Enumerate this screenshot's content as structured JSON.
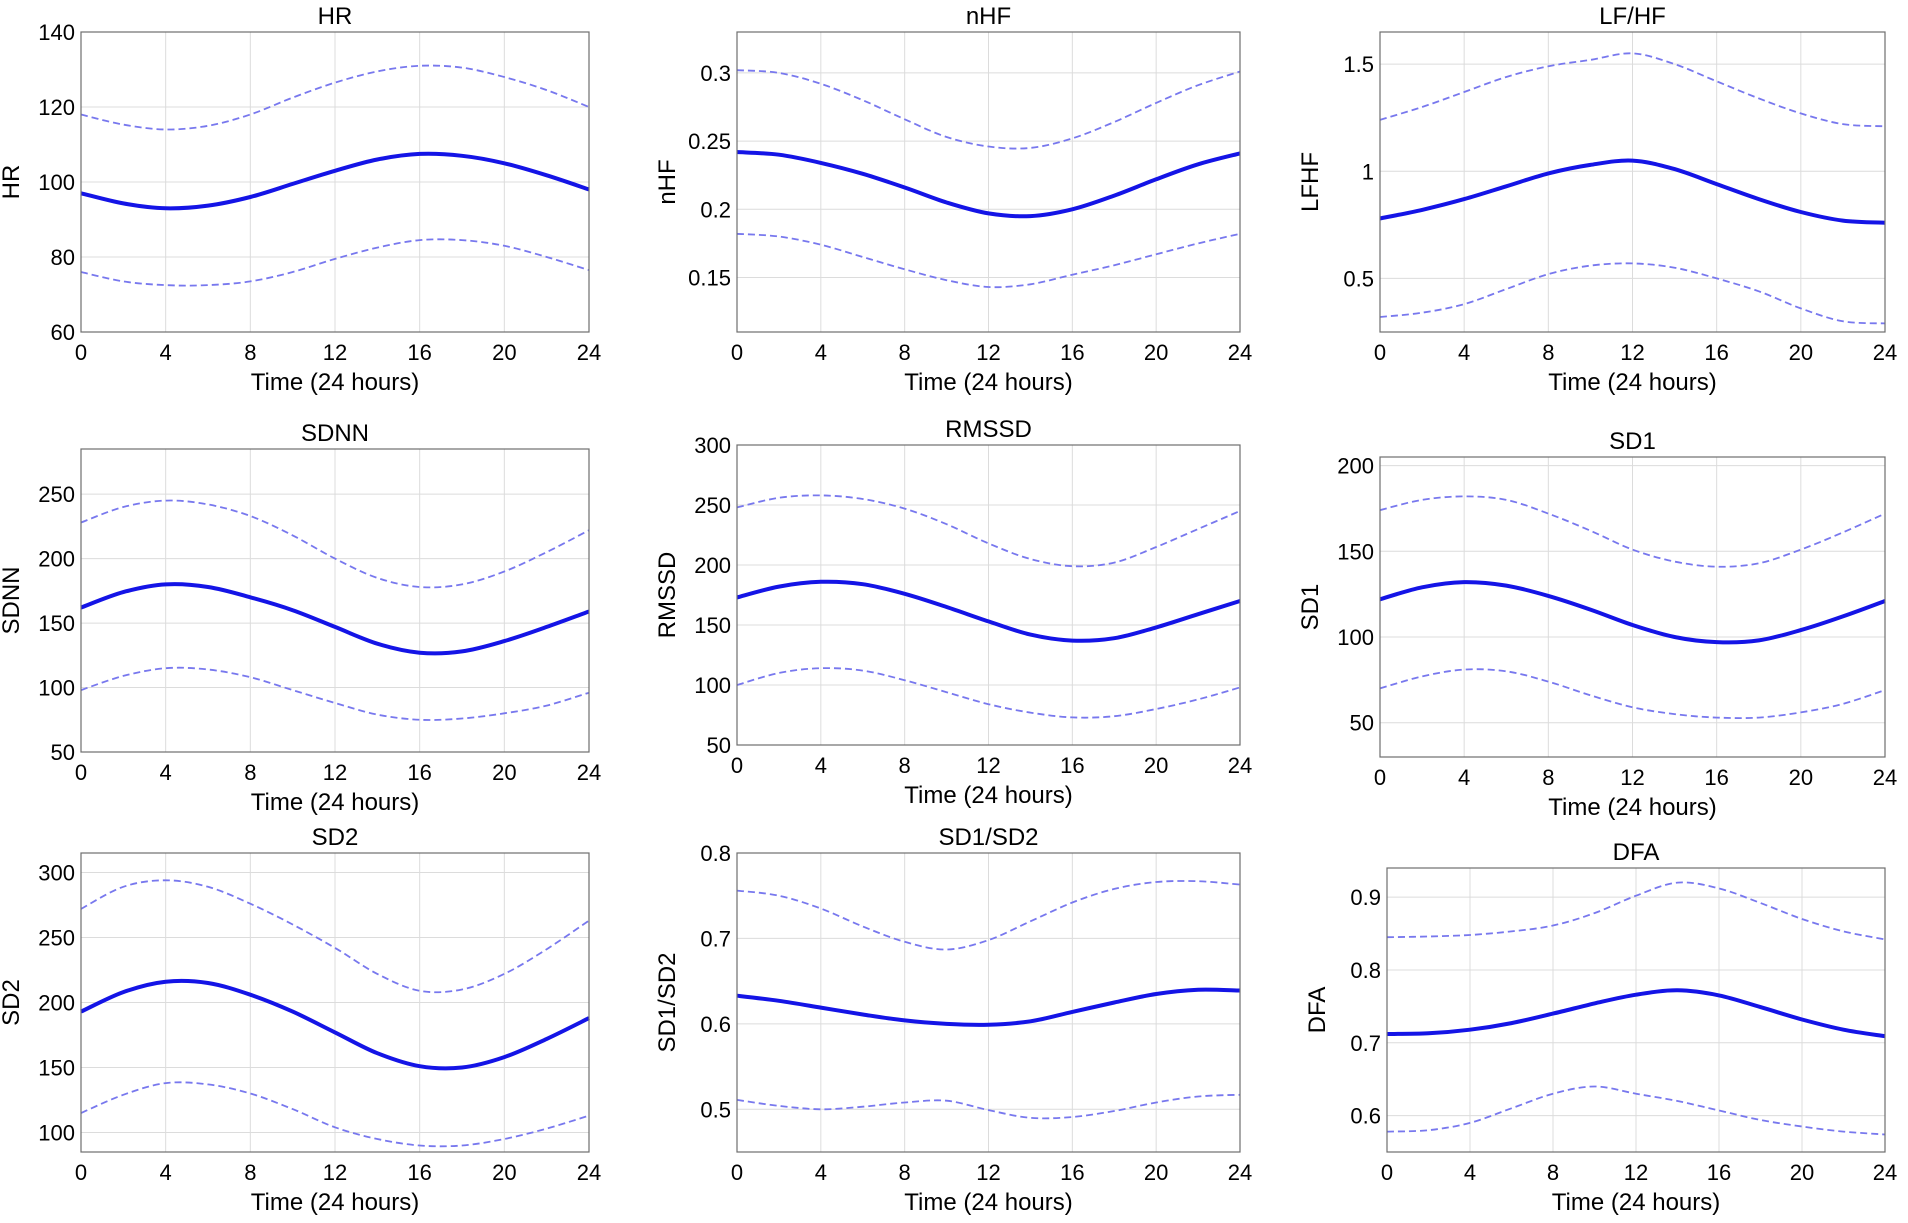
{
  "colors": {
    "mean": "#1414e6",
    "bound": "#7878ee",
    "grid": "#dcdcdc",
    "frame": "#6e6e6e"
  },
  "chart_data": [
    {
      "type": "line",
      "title": "HR",
      "ylabel": "HR",
      "xlabel": "Time (24 hours)",
      "xlim": [
        0,
        24
      ],
      "ylim": [
        60,
        140
      ],
      "xticks": [
        "0",
        "4",
        "8",
        "12",
        "16",
        "20",
        "24"
      ],
      "yticks": [
        "60",
        "80",
        "100",
        "120",
        "140"
      ],
      "x": [
        0,
        2,
        4,
        6,
        8,
        10,
        12,
        14,
        16,
        18,
        20,
        22,
        24
      ],
      "series": [
        {
          "name": "mean",
          "values": [
            97,
            94.3,
            93,
            93.7,
            96,
            99.5,
            103,
            106,
            107.5,
            107,
            105,
            101.8,
            98
          ]
        },
        {
          "name": "upper",
          "values": [
            118,
            115.3,
            114,
            115,
            118,
            122.5,
            126.5,
            129.5,
            131,
            130.5,
            128,
            124.5,
            120
          ]
        },
        {
          "name": "lower",
          "values": [
            76,
            73.5,
            72.5,
            72.5,
            73.5,
            76,
            79.5,
            82.5,
            84.5,
            84.5,
            83,
            80,
            76.5
          ]
        }
      ]
    },
    {
      "type": "line",
      "title": "nHF",
      "ylabel": "nHF",
      "xlabel": "Time (24 hours)",
      "xlim": [
        0,
        24
      ],
      "ylim": [
        0.11,
        0.33
      ],
      "xticks": [
        "0",
        "4",
        "8",
        "12",
        "16",
        "20",
        "24"
      ],
      "yticks": [
        "0.15",
        "0.2",
        "0.25",
        "0.3"
      ],
      "x": [
        0,
        2,
        4,
        6,
        8,
        10,
        12,
        14,
        16,
        18,
        20,
        22,
        24
      ],
      "series": [
        {
          "name": "mean",
          "values": [
            0.242,
            0.24,
            0.234,
            0.226,
            0.216,
            0.205,
            0.197,
            0.195,
            0.2,
            0.21,
            0.222,
            0.233,
            0.241
          ]
        },
        {
          "name": "upper",
          "values": [
            0.302,
            0.3,
            0.292,
            0.28,
            0.266,
            0.253,
            0.246,
            0.245,
            0.252,
            0.264,
            0.278,
            0.291,
            0.301
          ]
        },
        {
          "name": "lower",
          "values": [
            0.182,
            0.18,
            0.174,
            0.165,
            0.156,
            0.148,
            0.143,
            0.145,
            0.152,
            0.159,
            0.167,
            0.175,
            0.182
          ]
        }
      ]
    },
    {
      "type": "line",
      "title": "LF/HF",
      "ylabel": "LFHF",
      "xlabel": "Time (24 hours)",
      "xlim": [
        0,
        24
      ],
      "ylim": [
        0.25,
        1.65
      ],
      "xticks": [
        "0",
        "4",
        "8",
        "12",
        "16",
        "20",
        "24"
      ],
      "yticks": [
        "0.5",
        "1",
        "1.5"
      ],
      "x": [
        0,
        2,
        4,
        6,
        8,
        10,
        12,
        14,
        16,
        18,
        20,
        22,
        24
      ],
      "series": [
        {
          "name": "mean",
          "values": [
            0.78,
            0.82,
            0.87,
            0.93,
            0.99,
            1.03,
            1.05,
            1.01,
            0.94,
            0.87,
            0.81,
            0.77,
            0.76
          ]
        },
        {
          "name": "upper",
          "values": [
            1.24,
            1.3,
            1.37,
            1.44,
            1.49,
            1.52,
            1.55,
            1.5,
            1.42,
            1.34,
            1.27,
            1.22,
            1.21
          ]
        },
        {
          "name": "lower",
          "values": [
            0.32,
            0.34,
            0.38,
            0.45,
            0.52,
            0.56,
            0.57,
            0.55,
            0.5,
            0.44,
            0.36,
            0.3,
            0.29
          ]
        }
      ]
    },
    {
      "type": "line",
      "title": "SDNN",
      "ylabel": "SDNN",
      "xlabel": "Time (24 hours)",
      "xlim": [
        0,
        24
      ],
      "ylim": [
        50,
        285
      ],
      "xticks": [
        "0",
        "4",
        "8",
        "12",
        "16",
        "20",
        "24"
      ],
      "yticks": [
        "50",
        "100",
        "150",
        "200",
        "250"
      ],
      "x": [
        0,
        2,
        4,
        6,
        8,
        10,
        12,
        14,
        16,
        18,
        20,
        22,
        24
      ],
      "series": [
        {
          "name": "mean",
          "values": [
            162,
            174,
            180,
            178,
            170,
            160,
            147,
            134,
            127,
            128,
            136,
            147,
            159
          ]
        },
        {
          "name": "upper",
          "values": [
            228,
            240,
            245,
            242,
            233,
            218,
            200,
            185,
            178,
            180,
            190,
            205,
            222
          ]
        },
        {
          "name": "lower",
          "values": [
            98,
            109,
            115,
            114,
            108,
            98,
            88,
            79,
            75,
            76,
            80,
            86,
            96
          ]
        }
      ]
    },
    {
      "type": "line",
      "title": "RMSSD",
      "ylabel": "RMSSD",
      "xlabel": "Time (24 hours)",
      "xlim": [
        0,
        24
      ],
      "ylim": [
        50,
        300
      ],
      "xticks": [
        "0",
        "4",
        "8",
        "12",
        "16",
        "20",
        "24"
      ],
      "yticks": [
        "50",
        "100",
        "150",
        "200",
        "250",
        "300"
      ],
      "x": [
        0,
        2,
        4,
        6,
        8,
        10,
        12,
        14,
        16,
        18,
        20,
        22,
        24
      ],
      "series": [
        {
          "name": "mean",
          "values": [
            173,
            182,
            186,
            184,
            176,
            165,
            153,
            142,
            137,
            139,
            148,
            159,
            170
          ]
        },
        {
          "name": "upper",
          "values": [
            248,
            256,
            258,
            255,
            247,
            234,
            218,
            205,
            199,
            202,
            215,
            230,
            245
          ]
        },
        {
          "name": "lower",
          "values": [
            100,
            110,
            114,
            112,
            104,
            94,
            84,
            77,
            73,
            74,
            80,
            88,
            98
          ]
        }
      ]
    },
    {
      "type": "line",
      "title": "SD1",
      "ylabel": "SD1",
      "xlabel": "Time (24 hours)",
      "xlim": [
        0,
        24
      ],
      "ylim": [
        30,
        205
      ],
      "xticks": [
        "0",
        "4",
        "8",
        "12",
        "16",
        "20",
        "24"
      ],
      "yticks": [
        "50",
        "100",
        "150",
        "200"
      ],
      "x": [
        0,
        2,
        4,
        6,
        8,
        10,
        12,
        14,
        16,
        18,
        20,
        22,
        24
      ],
      "series": [
        {
          "name": "mean",
          "values": [
            122,
            129,
            132,
            130,
            124,
            116,
            107,
            100,
            97,
            98,
            104,
            112,
            121
          ]
        },
        {
          "name": "upper",
          "values": [
            174,
            180,
            182,
            180,
            172,
            162,
            151,
            144,
            141,
            143,
            151,
            161,
            172
          ]
        },
        {
          "name": "lower",
          "values": [
            70,
            77,
            81,
            80,
            74,
            66,
            59,
            55,
            53,
            53,
            56,
            61,
            69
          ]
        }
      ]
    },
    {
      "type": "line",
      "title": "SD2",
      "ylabel": "SD2",
      "xlabel": "Time (24 hours)",
      "xlim": [
        0,
        24
      ],
      "ylim": [
        85,
        315
      ],
      "xticks": [
        "0",
        "4",
        "8",
        "12",
        "16",
        "20",
        "24"
      ],
      "yticks": [
        "100",
        "150",
        "200",
        "250",
        "300"
      ],
      "x": [
        0,
        2,
        4,
        6,
        8,
        10,
        12,
        14,
        16,
        18,
        20,
        22,
        24
      ],
      "series": [
        {
          "name": "mean",
          "values": [
            193,
            208,
            216,
            215,
            206,
            193,
            177,
            161,
            151,
            150,
            158,
            172,
            188
          ]
        },
        {
          "name": "upper",
          "values": [
            272,
            289,
            294,
            289,
            276,
            260,
            242,
            222,
            209,
            210,
            222,
            241,
            263
          ]
        },
        {
          "name": "lower",
          "values": [
            115,
            129,
            138,
            137,
            130,
            118,
            104,
            95,
            90,
            90,
            95,
            103,
            113
          ]
        }
      ]
    },
    {
      "type": "line",
      "title": "SD1/SD2",
      "ylabel": "SD1/SD2",
      "xlabel": "Time (24 hours)",
      "xlim": [
        0,
        24
      ],
      "ylim": [
        0.45,
        0.8
      ],
      "xticks": [
        "0",
        "4",
        "8",
        "12",
        "16",
        "20",
        "24"
      ],
      "yticks": [
        "0.5",
        "0.6",
        "0.7",
        "0.8"
      ],
      "x": [
        0,
        2,
        4,
        6,
        8,
        10,
        12,
        14,
        16,
        18,
        20,
        22,
        24
      ],
      "series": [
        {
          "name": "mean",
          "values": [
            0.633,
            0.627,
            0.619,
            0.611,
            0.604,
            0.6,
            0.599,
            0.603,
            0.614,
            0.625,
            0.635,
            0.64,
            0.639
          ]
        },
        {
          "name": "upper",
          "values": [
            0.756,
            0.75,
            0.735,
            0.714,
            0.696,
            0.687,
            0.698,
            0.72,
            0.742,
            0.758,
            0.766,
            0.767,
            0.763
          ]
        },
        {
          "name": "lower",
          "values": [
            0.511,
            0.504,
            0.5,
            0.503,
            0.508,
            0.51,
            0.499,
            0.49,
            0.491,
            0.498,
            0.508,
            0.515,
            0.517
          ]
        }
      ]
    },
    {
      "type": "line",
      "title": "DFA",
      "ylabel": "DFA",
      "xlabel": "Time (24 hours)",
      "xlim": [
        0,
        24
      ],
      "ylim": [
        0.55,
        0.94
      ],
      "xticks": [
        "0",
        "4",
        "8",
        "12",
        "16",
        "20",
        "24"
      ],
      "yticks": [
        "0.6",
        "0.7",
        "0.8",
        "0.9"
      ],
      "x": [
        0,
        2,
        4,
        6,
        8,
        10,
        12,
        14,
        16,
        18,
        20,
        22,
        24
      ],
      "series": [
        {
          "name": "mean",
          "values": [
            0.712,
            0.713,
            0.718,
            0.727,
            0.74,
            0.754,
            0.766,
            0.772,
            0.765,
            0.749,
            0.732,
            0.718,
            0.709
          ]
        },
        {
          "name": "upper",
          "values": [
            0.845,
            0.846,
            0.848,
            0.853,
            0.861,
            0.878,
            0.902,
            0.92,
            0.912,
            0.892,
            0.87,
            0.853,
            0.842
          ]
        },
        {
          "name": "lower",
          "values": [
            0.578,
            0.58,
            0.59,
            0.61,
            0.63,
            0.64,
            0.63,
            0.62,
            0.607,
            0.594,
            0.585,
            0.578,
            0.574
          ]
        }
      ]
    }
  ]
}
